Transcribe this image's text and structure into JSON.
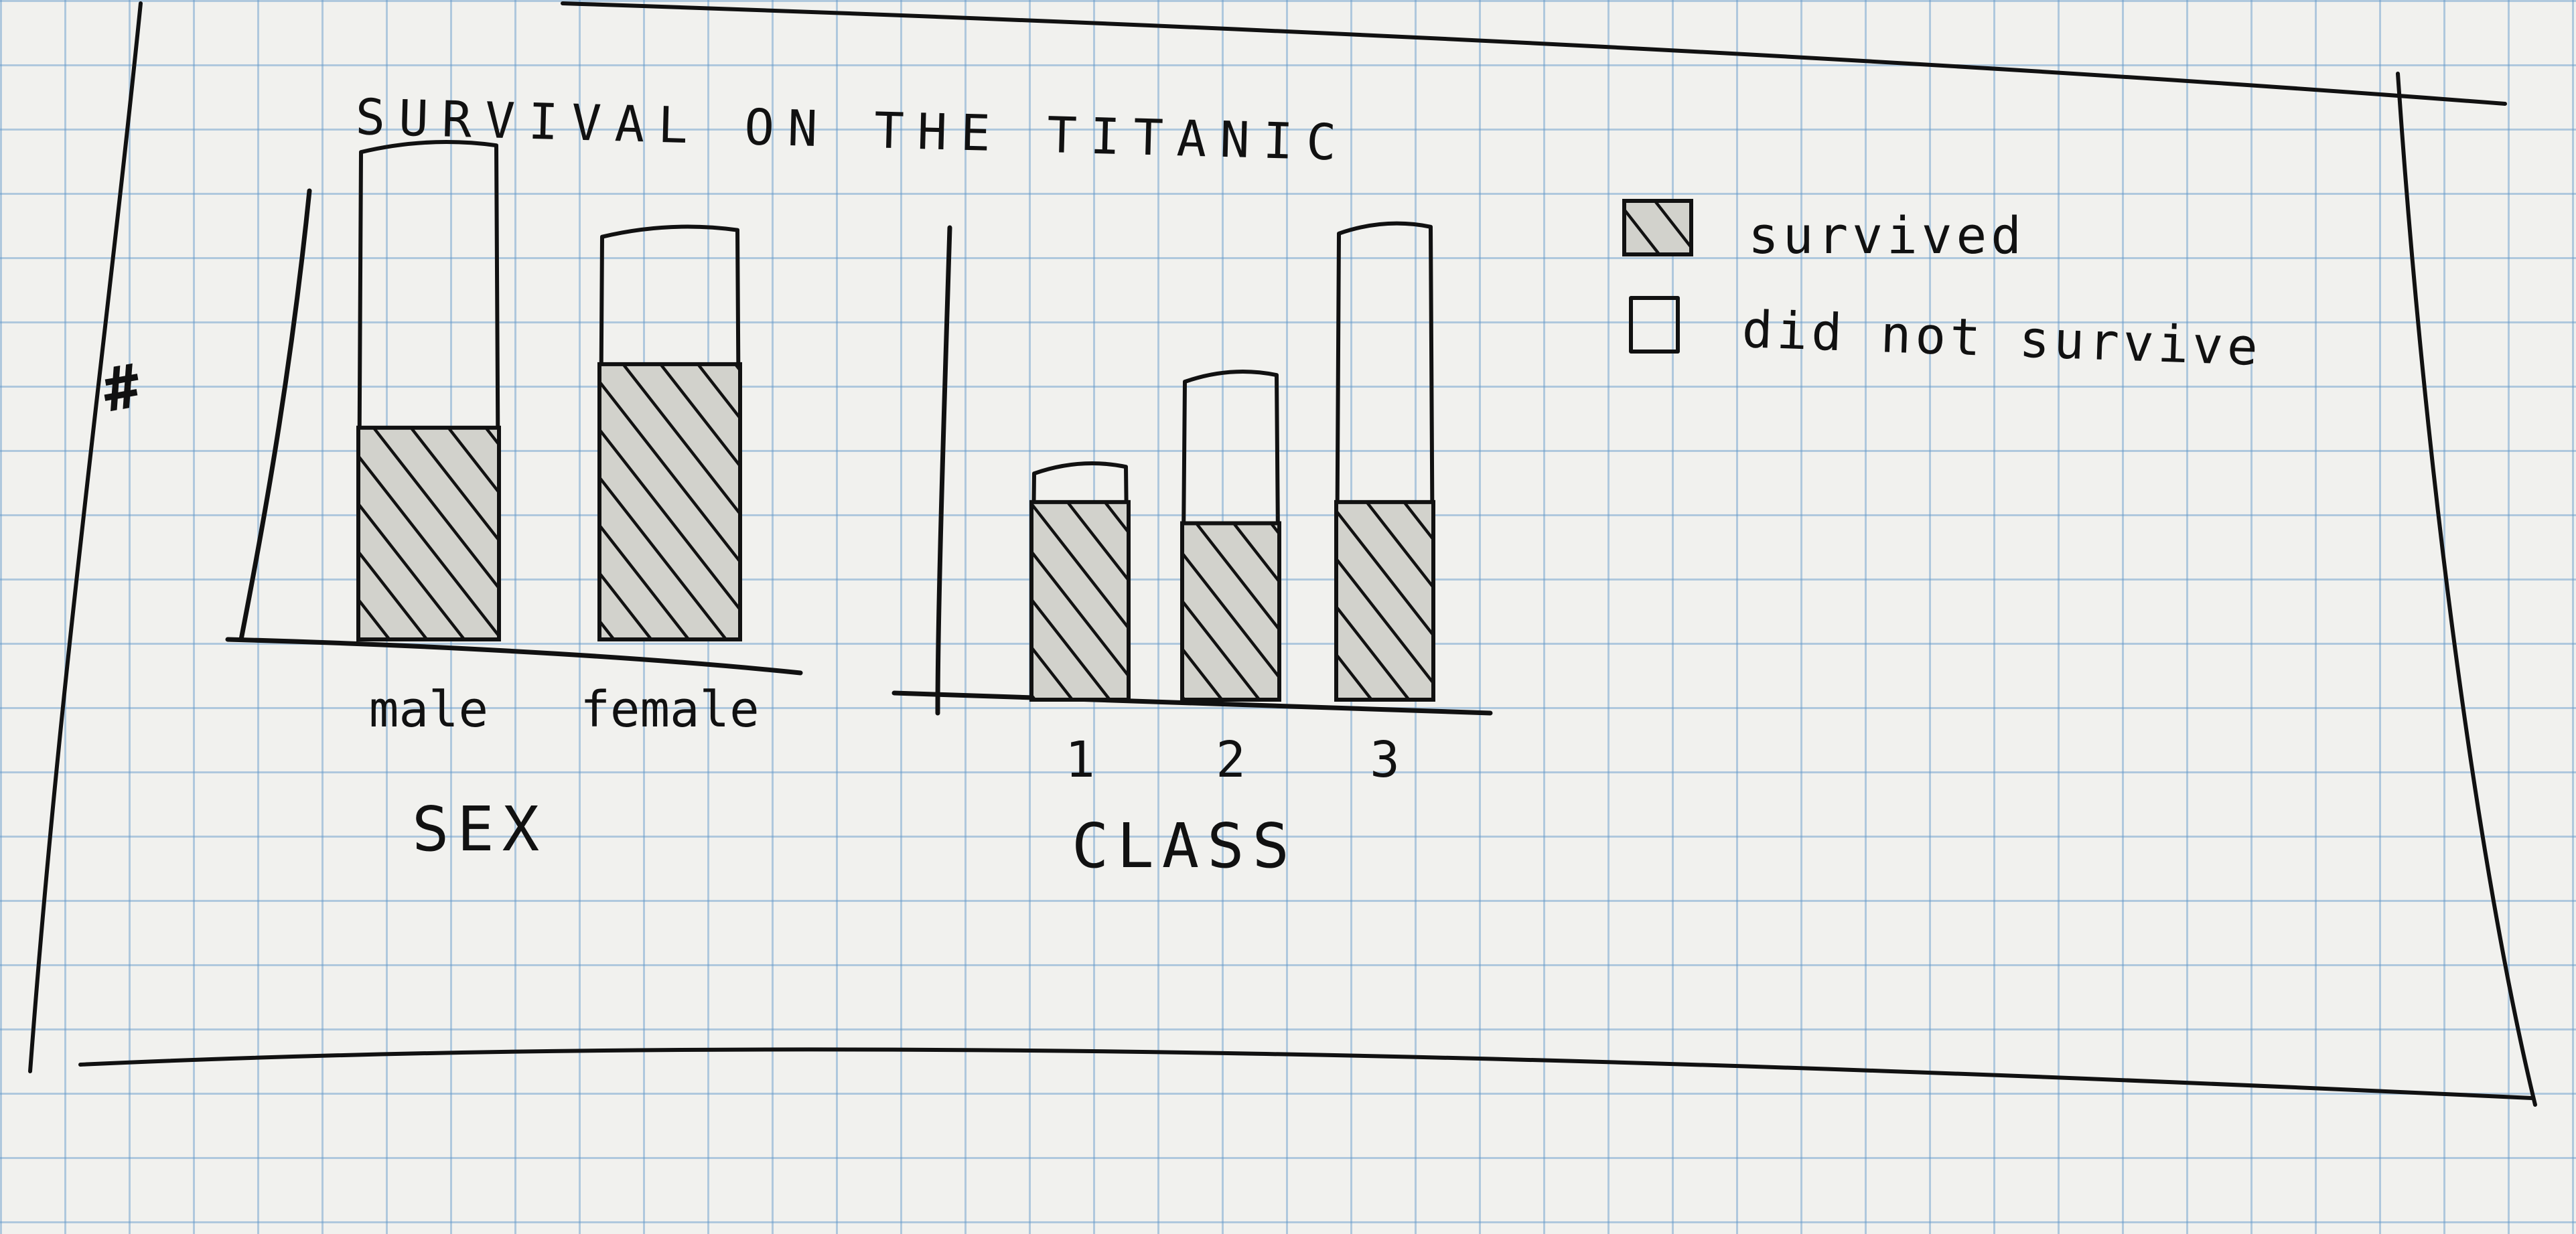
{
  "chart_data": {
    "title": "SURVIVAL ON THE TITANIC",
    "type": "bar",
    "stacked": true,
    "legend": {
      "placement": "top-right",
      "entries": [
        {
          "name": "survived",
          "style": "hatched"
        },
        {
          "name": "did not survive",
          "style": "outline"
        }
      ]
    },
    "panels": [
      {
        "ylabel": "#",
        "xlabel": "SEX",
        "categories": [
          "male",
          "female"
        ],
        "ylim": [
          0,
          3.7
        ],
        "series": [
          {
            "name": "survived",
            "values": [
              1.5,
              1.95
            ]
          },
          {
            "name": "did not survive",
            "values": [
              2.0,
              0.95
            ]
          }
        ]
      },
      {
        "ylabel": "",
        "xlabel": "CLASS",
        "categories": [
          "1",
          "2",
          "3"
        ],
        "ylim": [
          0,
          3.7
        ],
        "series": [
          {
            "name": "survived",
            "values": [
              1.4,
              1.25,
              1.4
            ]
          },
          {
            "name": "did not survive",
            "values": [
              0.25,
              1.05,
              1.95
            ]
          }
        ]
      }
    ]
  }
}
